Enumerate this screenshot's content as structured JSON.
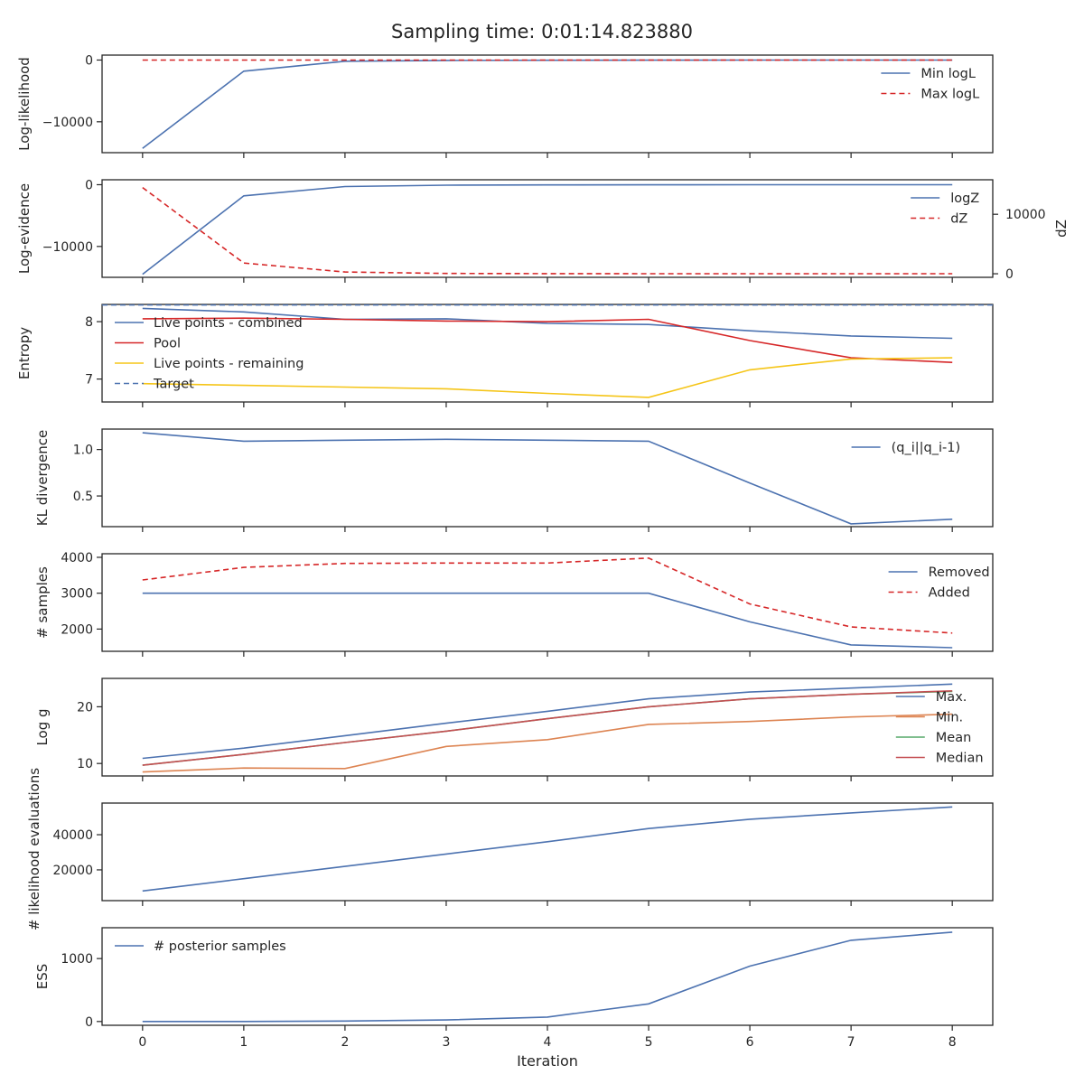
{
  "title": "Sampling time: 0:01:14.823880",
  "xlabel": "Iteration",
  "x_ticks": [
    0,
    1,
    2,
    3,
    4,
    5,
    6,
    7,
    8
  ],
  "colors": {
    "blue": "#4c72b0",
    "red": "#d62728",
    "orange": "#dd8452",
    "green": "#55a868",
    "median_red": "#c44e52",
    "yellow": "#f5c518"
  },
  "chart_data": [
    {
      "type": "line",
      "ylabel": "Log-likelihood",
      "ylim": [
        -15000,
        800
      ],
      "yticks": [
        {
          "v": 0,
          "label": "0"
        },
        {
          "v": -10000,
          "label": "−10000"
        }
      ],
      "legend": "top-right",
      "x": [
        0,
        1,
        2,
        3,
        4,
        5,
        6,
        7,
        8
      ],
      "series": [
        {
          "name": "Min logL",
          "color": "#4c72b0",
          "dash": false,
          "values": [
            -14300,
            -1800,
            -200,
            -60,
            -30,
            -15,
            -10,
            -5,
            -3
          ]
        },
        {
          "name": "Max logL",
          "color": "#d62728",
          "dash": true,
          "values": [
            0,
            0,
            0,
            0,
            0,
            0,
            0,
            0,
            0
          ]
        }
      ]
    },
    {
      "type": "line",
      "ylabel": "Log-evidence",
      "ylabel_right": "dZ",
      "ylim": [
        -15000,
        800
      ],
      "ylim_right": [
        -600,
        15800
      ],
      "yticks": [
        {
          "v": 0,
          "label": "0"
        },
        {
          "v": -10000,
          "label": "−10000"
        }
      ],
      "yticks_right": [
        {
          "v": 0,
          "label": "0"
        },
        {
          "v": 10000,
          "label": "10000"
        }
      ],
      "legend": "top-right",
      "x": [
        0,
        1,
        2,
        3,
        4,
        5,
        6,
        7,
        8
      ],
      "series": [
        {
          "name": "logZ",
          "color": "#4c72b0",
          "dash": false,
          "values": [
            -14500,
            -1800,
            -300,
            -80,
            -40,
            -20,
            -10,
            -5,
            -3
          ]
        },
        {
          "name": "dZ",
          "color": "#d62728",
          "dash": true,
          "axis": "right",
          "values": [
            14500,
            1800,
            300,
            60,
            20,
            10,
            5,
            3,
            2
          ]
        }
      ]
    },
    {
      "type": "line",
      "ylabel": "Entropy",
      "ylim": [
        6.6,
        8.3
      ],
      "yticks": [
        {
          "v": 8,
          "label": "8"
        },
        {
          "v": 7,
          "label": "7"
        }
      ],
      "legend": "top-left",
      "x": [
        0,
        1,
        2,
        3,
        4,
        5,
        6,
        7,
        8
      ],
      "series": [
        {
          "name": "Live points - combined",
          "color": "#4c72b0",
          "dash": false,
          "values": [
            8.23,
            8.17,
            8.04,
            8.05,
            7.97,
            7.95,
            7.84,
            7.75,
            7.71
          ]
        },
        {
          "name": "Pool",
          "color": "#d62728",
          "dash": false,
          "values": [
            8.05,
            8.06,
            8.04,
            8.01,
            8.0,
            8.04,
            7.67,
            7.37,
            7.29
          ]
        },
        {
          "name": "Live points - remaining",
          "color": "#f5c518",
          "dash": false,
          "values": [
            6.92,
            6.89,
            6.86,
            6.83,
            6.75,
            6.68,
            7.16,
            7.35,
            7.37
          ]
        },
        {
          "name": "Target",
          "color": "#4c72b0",
          "dash": true,
          "hline": 8.29
        }
      ]
    },
    {
      "type": "line",
      "ylabel": "KL divergence",
      "ylim": [
        0.17,
        1.22
      ],
      "yticks": [
        {
          "v": 1.0,
          "label": "1.0"
        },
        {
          "v": 0.5,
          "label": "0.5"
        }
      ],
      "legend": "top-right",
      "x": [
        0,
        1,
        2,
        3,
        4,
        5,
        6,
        7,
        8
      ],
      "series": [
        {
          "name": "(q_i||q_i-1)",
          "color": "#4c72b0",
          "dash": false,
          "values": [
            1.18,
            1.09,
            1.1,
            1.11,
            1.1,
            1.09,
            0.64,
            0.2,
            0.25
          ]
        }
      ]
    },
    {
      "type": "line",
      "ylabel": "# samples",
      "ylim": [
        1380,
        4100
      ],
      "yticks": [
        {
          "v": 4000,
          "label": "4000"
        },
        {
          "v": 3000,
          "label": "3000"
        },
        {
          "v": 2000,
          "label": "2000"
        }
      ],
      "legend": "top-right",
      "x": [
        0,
        1,
        2,
        3,
        4,
        5,
        6,
        7,
        8
      ],
      "series": [
        {
          "name": "Removed",
          "color": "#4c72b0",
          "dash": false,
          "values": [
            3000,
            3000,
            3000,
            3000,
            3000,
            3000,
            2200,
            1560,
            1480
          ]
        },
        {
          "name": "Added",
          "color": "#d62728",
          "dash": true,
          "values": [
            3370,
            3720,
            3830,
            3840,
            3840,
            3980,
            2700,
            2060,
            1890
          ]
        }
      ]
    },
    {
      "type": "line",
      "ylabel": "Log g",
      "ylim": [
        7.8,
        25.0
      ],
      "yticks": [
        {
          "v": 20,
          "label": "20"
        },
        {
          "v": 10,
          "label": "10"
        }
      ],
      "legend": "top-right",
      "x": [
        0,
        1,
        2,
        3,
        4,
        5,
        6,
        7,
        8
      ],
      "series": [
        {
          "name": "Max.",
          "color": "#4c72b0",
          "dash": false,
          "values": [
            10.9,
            12.7,
            14.9,
            17.1,
            19.2,
            21.4,
            22.6,
            23.3,
            24.0
          ]
        },
        {
          "name": "Min.",
          "color": "#dd8452",
          "dash": false,
          "values": [
            8.5,
            9.2,
            9.1,
            13.0,
            14.2,
            16.9,
            17.4,
            18.2,
            18.7
          ]
        },
        {
          "name": "Mean",
          "color": "#55a868",
          "dash": false,
          "values": [
            9.7,
            11.6,
            13.7,
            15.7,
            17.9,
            20.0,
            21.4,
            22.2,
            22.7
          ]
        },
        {
          "name": "Median",
          "color": "#c44e52",
          "dash": false,
          "values": [
            9.7,
            11.6,
            13.7,
            15.7,
            17.9,
            20.0,
            21.4,
            22.2,
            22.8
          ]
        }
      ]
    },
    {
      "type": "line",
      "ylabel": "# likelihood evaluations",
      "ylim": [
        2500,
        58000
      ],
      "yticks": [
        {
          "v": 40000,
          "label": "40000"
        },
        {
          "v": 20000,
          "label": "20000"
        }
      ],
      "legend": "none",
      "x": [
        0,
        1,
        2,
        3,
        4,
        5,
        6,
        7,
        8
      ],
      "series": [
        {
          "name": "",
          "color": "#4c72b0",
          "dash": false,
          "values": [
            8000,
            15000,
            22000,
            29000,
            36000,
            43500,
            48800,
            52400,
            55800
          ]
        }
      ]
    },
    {
      "type": "line",
      "ylabel": "ESS",
      "ylim": [
        -60,
        1490
      ],
      "yticks": [
        {
          "v": 1000,
          "label": "1000"
        },
        {
          "v": 0,
          "label": "0"
        }
      ],
      "legend": "top-left",
      "x": [
        0,
        1,
        2,
        3,
        4,
        5,
        6,
        7,
        8
      ],
      "series": [
        {
          "name": "# posterior samples",
          "color": "#4c72b0",
          "dash": false,
          "values": [
            0,
            0,
            8,
            25,
            70,
            280,
            880,
            1290,
            1420
          ]
        }
      ]
    }
  ]
}
